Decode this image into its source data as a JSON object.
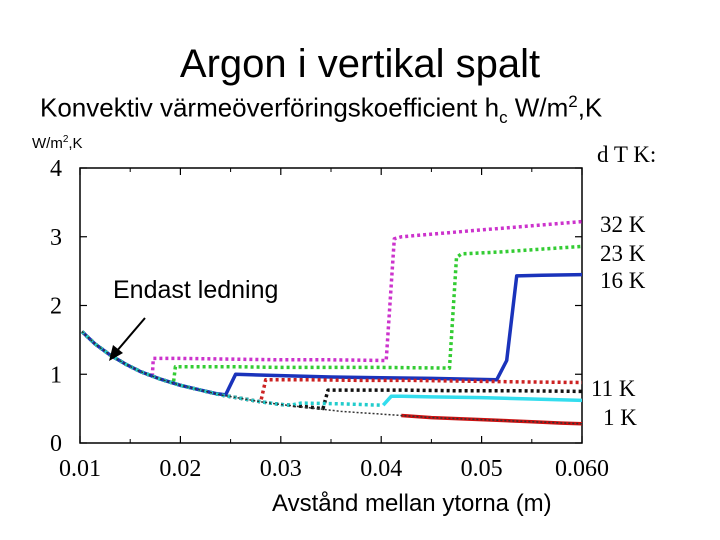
{
  "chart_data": {
    "type": "line",
    "title": "Argon i vertikal spalt",
    "subtitle": {
      "main": "Konvektiv värmeöverföringskoefficient h",
      "sub": "c",
      "after": " W/m",
      "sup": "2",
      "end": ",K"
    },
    "ylabel": {
      "main": "W/m",
      "sup": "2",
      "end": ",K"
    },
    "xlabel": "Avstånd mellan ytorna (m)",
    "annotation": "Endast ledning",
    "legend_title": "d T K:",
    "x_tick_labels": [
      "0.01",
      "0.02",
      "0.03",
      "0.04",
      "0.05",
      "0.060"
    ],
    "x_ticks": [
      0.01,
      0.02,
      0.03,
      0.04,
      0.05,
      0.06
    ],
    "y_tick_labels": [
      "0",
      "1",
      "2",
      "3",
      "4"
    ],
    "y_ticks": [
      0,
      1,
      2,
      3,
      4
    ],
    "xlim": [
      0.01,
      0.06
    ],
    "ylim": [
      0,
      4
    ],
    "grid": false,
    "legend_position": "right",
    "conduction": {
      "x": [
        0.0102,
        0.0115,
        0.013,
        0.0145,
        0.016,
        0.018,
        0.02,
        0.022,
        0.024,
        0.026,
        0.028,
        0.03,
        0.033,
        0.036,
        0.04,
        0.045,
        0.05,
        0.055,
        0.06
      ],
      "y": [
        1.62,
        1.44,
        1.28,
        1.15,
        1.04,
        0.93,
        0.84,
        0.77,
        0.7,
        0.65,
        0.6,
        0.56,
        0.51,
        0.46,
        0.42,
        0.37,
        0.34,
        0.31,
        0.28
      ]
    },
    "series": [
      {
        "name": "32 K",
        "color": "#cc33cc",
        "dash": "dotted",
        "x": [
          0.0102,
          0.0115,
          0.013,
          0.0145,
          0.016,
          0.0172,
          0.0173,
          0.0185,
          0.02,
          0.025,
          0.03,
          0.035,
          0.0405,
          0.0413,
          0.042,
          0.046,
          0.05,
          0.055,
          0.06
        ],
        "y": [
          1.62,
          1.44,
          1.28,
          1.15,
          1.04,
          0.97,
          1.23,
          1.23,
          1.23,
          1.22,
          1.21,
          1.21,
          1.2,
          2.97,
          3.0,
          3.05,
          3.1,
          3.16,
          3.22
        ]
      },
      {
        "name": "23 K",
        "color": "#33cc33",
        "dash": "dotted",
        "x": [
          0.0102,
          0.0115,
          0.013,
          0.0145,
          0.016,
          0.018,
          0.0193,
          0.0195,
          0.021,
          0.025,
          0.03,
          0.035,
          0.04,
          0.0468,
          0.0475,
          0.048,
          0.052,
          0.056,
          0.06
        ],
        "y": [
          1.62,
          1.44,
          1.28,
          1.15,
          1.04,
          0.93,
          0.87,
          1.11,
          1.11,
          1.11,
          1.1,
          1.1,
          1.1,
          1.09,
          2.7,
          2.75,
          2.78,
          2.82,
          2.86
        ]
      },
      {
        "name": "16 K",
        "color": "#1a33bb",
        "dash": "solid",
        "x": [
          0.0102,
          0.0115,
          0.013,
          0.0145,
          0.016,
          0.018,
          0.02,
          0.022,
          0.0235,
          0.0245,
          0.0255,
          0.03,
          0.035,
          0.04,
          0.045,
          0.0515,
          0.0525,
          0.0535,
          0.056,
          0.06
        ],
        "y": [
          1.62,
          1.44,
          1.28,
          1.15,
          1.04,
          0.93,
          0.84,
          0.77,
          0.72,
          0.7,
          1.0,
          0.98,
          0.96,
          0.95,
          0.94,
          0.92,
          1.2,
          2.43,
          2.44,
          2.45
        ]
      },
      {
        "name": "11 K",
        "color": "#cc2222",
        "dash": "dotted",
        "x": [
          0.0102,
          0.0115,
          0.013,
          0.0145,
          0.016,
          0.018,
          0.02,
          0.022,
          0.024,
          0.026,
          0.028,
          0.0285,
          0.0295,
          0.033,
          0.038,
          0.043,
          0.048,
          0.053,
          0.06
        ],
        "y": [
          1.62,
          1.44,
          1.28,
          1.15,
          1.04,
          0.93,
          0.84,
          0.77,
          0.7,
          0.65,
          0.6,
          0.92,
          0.92,
          0.92,
          0.91,
          0.91,
          0.9,
          0.89,
          0.88
        ]
      },
      {
        "name": "",
        "color": "#111111",
        "dash": "dotted",
        "x": [
          0.0102,
          0.0115,
          0.013,
          0.0145,
          0.016,
          0.018,
          0.02,
          0.022,
          0.024,
          0.026,
          0.028,
          0.03,
          0.031,
          0.033,
          0.0342,
          0.0347,
          0.038,
          0.042,
          0.048,
          0.054,
          0.06
        ],
        "y": [
          1.62,
          1.44,
          1.28,
          1.15,
          1.04,
          0.93,
          0.84,
          0.77,
          0.7,
          0.65,
          0.6,
          0.56,
          0.55,
          0.52,
          0.5,
          0.77,
          0.77,
          0.77,
          0.76,
          0.76,
          0.75
        ]
      },
      {
        "name": "",
        "color": "#22cccc",
        "dash": "dotted",
        "x": [
          0.0102,
          0.0115,
          0.013,
          0.0145,
          0.016,
          0.018,
          0.02,
          0.022,
          0.024,
          0.026,
          0.028,
          0.03,
          0.031,
          0.032,
          0.036,
          0.04
        ],
        "y": [
          1.62,
          1.44,
          1.28,
          1.15,
          1.04,
          0.93,
          0.84,
          0.77,
          0.7,
          0.65,
          0.6,
          0.56,
          0.55,
          0.58,
          0.57,
          0.55
        ]
      },
      {
        "name": "",
        "color": "#33ddee",
        "dash": "solid",
        "x": [
          0.0402,
          0.041,
          0.042,
          0.045,
          0.05,
          0.055,
          0.06
        ],
        "y": [
          0.55,
          0.68,
          0.68,
          0.67,
          0.66,
          0.64,
          0.62
        ]
      },
      {
        "name": "1 K",
        "color": "#cc1111",
        "dash": "solid",
        "x": [
          0.042,
          0.045,
          0.05,
          0.055,
          0.058,
          0.06
        ],
        "y": [
          0.4,
          0.37,
          0.34,
          0.31,
          0.29,
          0.28
        ]
      }
    ],
    "legend_labels": [
      "32 K",
      "23 K",
      "16 K",
      "11 K",
      "1 K"
    ]
  }
}
